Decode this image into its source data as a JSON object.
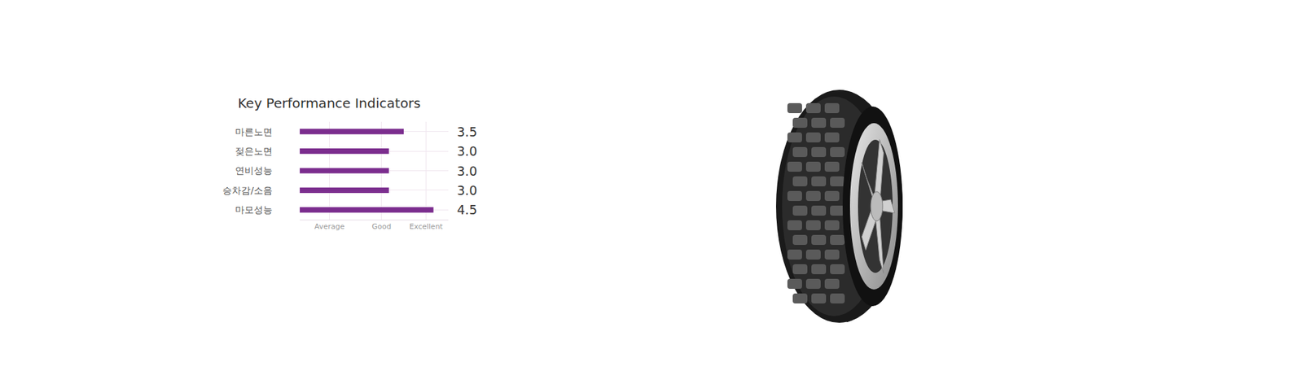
{
  "chart_data": {
    "type": "bar",
    "orientation": "horizontal",
    "title": "Key Performance Indicators",
    "categories": [
      "마른노면",
      "젖은노면",
      "연비성능",
      "승차감/소음",
      "마모성능"
    ],
    "values": [
      3.5,
      3.0,
      3.0,
      3.0,
      4.5
    ],
    "value_labels": [
      "3.5",
      "3.0",
      "3.0",
      "3.0",
      "4.5"
    ],
    "color": "#7b2d8e",
    "xlim": [
      0,
      5
    ],
    "xticks": [
      {
        "value": 1,
        "label": "Average"
      },
      {
        "value": 2.75,
        "label": "Good"
      },
      {
        "value": 4.25,
        "label": "Excellent"
      }
    ],
    "grid": true,
    "data_labels": true
  }
}
